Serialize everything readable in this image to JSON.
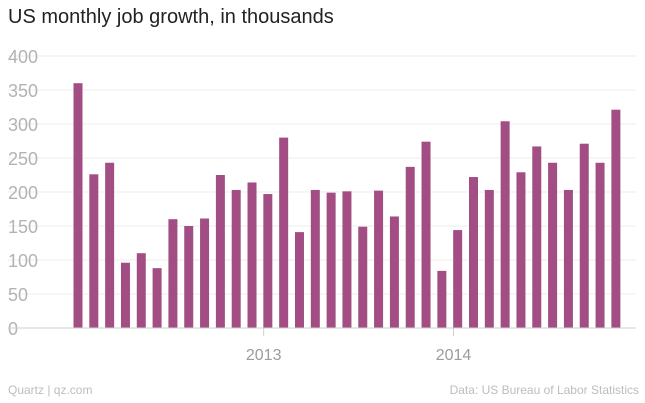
{
  "title": "US monthly job growth, in thousands",
  "footer": {
    "source_left": "Quartz | qz.com",
    "source_right": "Data: US Bureau of Labor Statistics"
  },
  "colors": {
    "bar": "#a24d83",
    "grid": "#eeeeee",
    "axis": "#cfcfcf"
  },
  "chart_data": {
    "type": "bar",
    "title": "US monthly job growth, in thousands",
    "xlabel": "",
    "ylabel": "",
    "ylim": [
      0,
      400
    ],
    "yticks": [
      0,
      50,
      100,
      150,
      200,
      250,
      300,
      350,
      400
    ],
    "grid": true,
    "xtick_labels": [
      {
        "label": "2013",
        "at_category": 2012.92
      },
      {
        "label": "2014",
        "at_category": 2013.92
      }
    ],
    "categories": [
      "2012-01",
      "2012-02",
      "2012-03",
      "2012-04",
      "2012-05",
      "2012-06",
      "2012-07",
      "2012-08",
      "2012-09",
      "2012-10",
      "2012-11",
      "2012-12",
      "2013-01",
      "2013-02",
      "2013-03",
      "2013-04",
      "2013-05",
      "2013-06",
      "2013-07",
      "2013-08",
      "2013-09",
      "2013-10",
      "2013-11",
      "2013-12",
      "2014-01",
      "2014-02",
      "2014-03",
      "2014-04",
      "2014-05",
      "2014-06",
      "2014-07",
      "2014-08",
      "2014-09",
      "2014-10",
      "2014-11"
    ],
    "values": [
      360,
      226,
      243,
      96,
      110,
      88,
      160,
      150,
      161,
      225,
      203,
      214,
      197,
      280,
      141,
      203,
      199,
      201,
      149,
      202,
      164,
      237,
      274,
      84,
      144,
      222,
      203,
      304,
      229,
      267,
      243,
      203,
      271,
      243,
      321
    ]
  }
}
